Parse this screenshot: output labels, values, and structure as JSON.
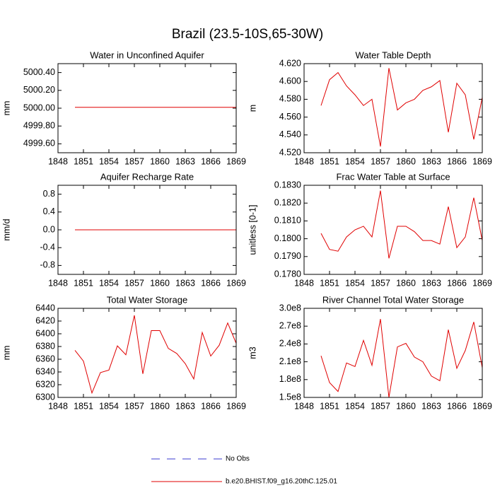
{
  "title": "Brazil (23.5-10S,65-30W)",
  "legend": [
    {
      "name": "No Obs",
      "color": "#3b3bd0",
      "dash": true
    },
    {
      "name": "b.e20.BHIST.f09_g16.20thC.125.01",
      "color": "#e00000",
      "dash": false
    }
  ],
  "chart_data": [
    {
      "type": "line",
      "title": "Water in Unconfined Aquifer",
      "y_label": "mm",
      "color": "#e00000",
      "x": [
        1850,
        1851,
        1852,
        1853,
        1854,
        1855,
        1856,
        1857,
        1858,
        1859,
        1860,
        1861,
        1862,
        1863,
        1864,
        1865,
        1866,
        1867,
        1868,
        1869
      ],
      "values": [
        5000.01,
        5000.01,
        5000.01,
        5000.01,
        5000.01,
        5000.01,
        5000.01,
        5000.01,
        5000.01,
        5000.01,
        5000.01,
        5000.01,
        5000.01,
        5000.01,
        5000.01,
        5000.01,
        5000.01,
        5000.01,
        5000.01,
        5000.01
      ],
      "xlim": [
        1848,
        1869
      ],
      "xticks": [
        1848,
        1851,
        1854,
        1857,
        1860,
        1863,
        1866,
        1869
      ],
      "ylim": [
        4999.5,
        5000.5
      ],
      "yticks": [
        {
          "value": 4999.6,
          "label": "4999.60"
        },
        {
          "value": 4999.8,
          "label": "4999.80"
        },
        {
          "value": 5000,
          "label": "5000.00"
        },
        {
          "value": 5000.2,
          "label": "5000.20"
        },
        {
          "value": 5000.4,
          "label": "5000.40"
        }
      ]
    },
    {
      "type": "line",
      "title": "Water Table Depth",
      "y_label": "m",
      "color": "#e00000",
      "x": [
        1850,
        1851,
        1852,
        1853,
        1854,
        1855,
        1856,
        1857,
        1858,
        1859,
        1860,
        1861,
        1862,
        1863,
        1864,
        1865,
        1866,
        1867,
        1868,
        1869
      ],
      "values": [
        4.573,
        4.602,
        4.61,
        4.595,
        4.585,
        4.573,
        4.58,
        4.527,
        4.615,
        4.568,
        4.576,
        4.58,
        4.59,
        4.594,
        4.601,
        4.543,
        4.598,
        4.585,
        4.535,
        4.582
      ],
      "xlim": [
        1848,
        1869
      ],
      "xticks": [
        1848,
        1851,
        1854,
        1857,
        1860,
        1863,
        1866,
        1869
      ],
      "ylim": [
        4.52,
        4.62
      ],
      "yticks": [
        {
          "value": 4.52,
          "label": "4.520"
        },
        {
          "value": 4.54,
          "label": "4.540"
        },
        {
          "value": 4.56,
          "label": "4.560"
        },
        {
          "value": 4.58,
          "label": "4.580"
        },
        {
          "value": 4.6,
          "label": "4.600"
        },
        {
          "value": 4.62,
          "label": "4.620"
        }
      ]
    },
    {
      "type": "line",
      "title": "Aquifer Recharge Rate",
      "y_label": "mm/d",
      "color": "#e00000",
      "x": [
        1850,
        1851,
        1852,
        1853,
        1854,
        1855,
        1856,
        1857,
        1858,
        1859,
        1860,
        1861,
        1862,
        1863,
        1864,
        1865,
        1866,
        1867,
        1868,
        1869
      ],
      "values": [
        0,
        0,
        0,
        0,
        0,
        0,
        0,
        0,
        0,
        0,
        0,
        0,
        0,
        0,
        0,
        0,
        0,
        0,
        0,
        0
      ],
      "xlim": [
        1848,
        1869
      ],
      "xticks": [
        1848,
        1851,
        1854,
        1857,
        1860,
        1863,
        1866,
        1869
      ],
      "ylim": [
        -1,
        1
      ],
      "yticks": [
        -0.8,
        -0.4,
        {
          "value": 0,
          "label": "0.0"
        },
        0.4,
        0.8
      ]
    },
    {
      "type": "line",
      "title": "Frac Water Table at Surface",
      "y_label": "unitless [0-1]",
      "color": "#e00000",
      "x": [
        1850,
        1851,
        1852,
        1853,
        1854,
        1855,
        1856,
        1857,
        1858,
        1859,
        1860,
        1861,
        1862,
        1863,
        1864,
        1865,
        1866,
        1867,
        1868,
        1869
      ],
      "values": [
        0.1803,
        0.1794,
        0.1793,
        0.1801,
        0.1805,
        0.1807,
        0.1801,
        0.1827,
        0.1789,
        0.1807,
        0.1807,
        0.1804,
        0.1799,
        0.1799,
        0.1797,
        0.1818,
        0.1795,
        0.1801,
        0.1823,
        0.1799
      ],
      "xlim": [
        1848,
        1869
      ],
      "xticks": [
        1848,
        1851,
        1854,
        1857,
        1860,
        1863,
        1866,
        1869
      ],
      "ylim": [
        0.178,
        0.183
      ],
      "yticks": [
        {
          "value": 0.178,
          "label": "0.1780"
        },
        {
          "value": 0.179,
          "label": "0.1790"
        },
        {
          "value": 0.18,
          "label": "0.1800"
        },
        {
          "value": 0.181,
          "label": "0.1810"
        },
        {
          "value": 0.182,
          "label": "0.1820"
        },
        {
          "value": 0.183,
          "label": "0.1830"
        }
      ]
    },
    {
      "type": "line",
      "title": "Total Water Storage",
      "y_label": "mm",
      "color": "#e00000",
      "x": [
        1850,
        1851,
        1852,
        1853,
        1854,
        1855,
        1856,
        1857,
        1858,
        1859,
        1860,
        1861,
        1862,
        1863,
        1864,
        1865,
        1866,
        1867,
        1868,
        1869
      ],
      "values": [
        6374,
        6357,
        6307,
        6339,
        6343,
        6381,
        6367,
        6429,
        6337,
        6405,
        6405,
        6377,
        6369,
        6353,
        6329,
        6402,
        6365,
        6382,
        6417,
        6385
      ],
      "xlim": [
        1848,
        1869
      ],
      "xticks": [
        1848,
        1851,
        1854,
        1857,
        1860,
        1863,
        1866,
        1869
      ],
      "ylim": [
        6300,
        6440
      ],
      "yticks": [
        6300,
        6320,
        6340,
        6360,
        6380,
        6400,
        6420,
        6440
      ]
    },
    {
      "type": "line",
      "title": "River Channel Total Water Storage",
      "y_label": "m3",
      "color": "#e00000",
      "x": [
        1850,
        1851,
        1852,
        1853,
        1854,
        1855,
        1856,
        1857,
        1858,
        1859,
        1860,
        1861,
        1862,
        1863,
        1864,
        1865,
        1866,
        1867,
        1868,
        1869
      ],
      "values": [
        220000000,
        175000000,
        160000000,
        208000000,
        202000000,
        246000000,
        204000000,
        282000000,
        150000000,
        235000000,
        241000000,
        218000000,
        210000000,
        186000000,
        178000000,
        264000000,
        199000000,
        229000000,
        277000000,
        200000000
      ],
      "xlim": [
        1848,
        1869
      ],
      "xticks": [
        1848,
        1851,
        1854,
        1857,
        1860,
        1863,
        1866,
        1869
      ],
      "ylim": [
        150000000,
        300000000
      ],
      "yticks": [
        {
          "value": 150000000,
          "label": "1.5e8"
        },
        {
          "value": 180000000,
          "label": "1.8e8"
        },
        {
          "value": 210000000,
          "label": "2.1e8"
        },
        {
          "value": 240000000,
          "label": "2.4e8"
        },
        {
          "value": 270000000,
          "label": "2.7e8"
        },
        {
          "value": 300000000,
          "label": "3.0e8"
        }
      ]
    }
  ]
}
